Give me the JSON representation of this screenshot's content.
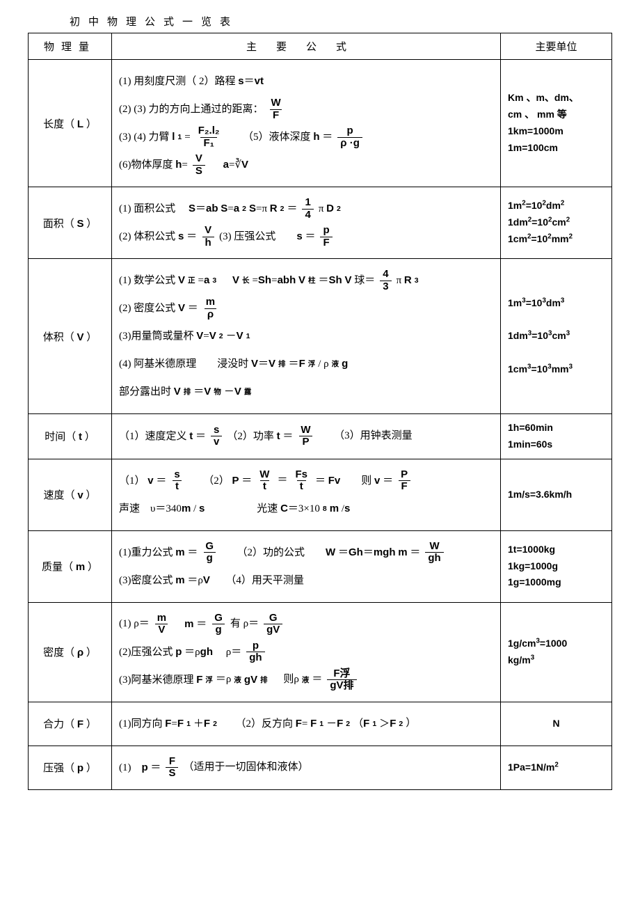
{
  "title": "初中物理公式一览表",
  "headers": {
    "qty": "物理量",
    "formula": "主要公式",
    "unit": "主要单位"
  },
  "rows": [
    {
      "qty_label": "长度",
      "qty_sym": "L",
      "formulas": [
        {
          "parts": [
            "(1) 用刻度尺测（ 2）路程 s＝vt"
          ]
        },
        {
          "parts": [
            "(2) (3) 力的方向上通过的距离：",
            {
              "type": "eq",
              "lhs": "s=",
              "frac": {
                "n": "W",
                "d": "F"
              }
            }
          ]
        },
        {
          "parts": [
            "(3) (4) 力臂 l",
            {
              "sub": "1"
            },
            "= ",
            {
              "frac": {
                "n": "F₂.l₂",
                "d": "F₁"
              }
            },
            "　　（5）液体深度  h ＝",
            {
              "frac": {
                "n": "p",
                "d": "ρ ·g"
              }
            }
          ]
        },
        {
          "parts": [
            "(6)物体厚度  h=",
            {
              "frac": {
                "n": "V",
                "d": "S"
              }
            },
            "　 a=∛V"
          ]
        }
      ],
      "units": [
        "Km 、m、dm、",
        "cm 、 mm 等",
        "1km=1000m",
        "1m=100cm"
      ]
    },
    {
      "qty_label": "面积",
      "qty_sym": "S",
      "formulas": [
        {
          "parts": [
            "(1)  面积公式　 S＝ab S=a",
            {
              "sup": "2"
            },
            " S=π R",
            {
              "sup": "2"
            },
            " ＝ ",
            {
              "frac": {
                "n": "1",
                "d": "4"
              }
            },
            " π D",
            {
              "sup": "2"
            }
          ]
        },
        {
          "parts": [
            "(2)  体积公式 s ＝",
            {
              "frac": {
                "n": "V",
                "d": "h"
              }
            },
            "  (3)  压强公式　　s ＝",
            {
              "frac": {
                "n": "p",
                "d": "F"
              }
            }
          ]
        }
      ],
      "units": [
        "1m²=10²dm²",
        "1dm²=10²cm²",
        "1cm²=10²mm²"
      ]
    },
    {
      "qty_label": "体积",
      "qty_sym": "V",
      "formulas": [
        {
          "parts": [
            "(1)  数学公式  V",
            {
              "sub": "正"
            },
            "=a",
            {
              "sup": "3"
            },
            "　 V",
            {
              "sub": "长"
            },
            "=Sh=abh V",
            {
              "sub": "柱"
            },
            "＝Sh V 球＝",
            {
              "frac": {
                "n": "4",
                "d": "3"
              }
            },
            " π R",
            {
              "sup": "3"
            }
          ]
        },
        {
          "parts": [
            "(2)  密度公式 V ＝",
            {
              "frac": {
                "n": "m",
                "d": "ρ"
              }
            }
          ]
        },
        {
          "parts": [
            "(3)用量筒或量杯  V=V",
            {
              "sub": "2"
            },
            "－V",
            {
              "sub": "1"
            }
          ]
        },
        {
          "parts": [
            "(4)  阿基米德原理　　浸没时 V＝V",
            {
              "sub": "排"
            },
            "＝F",
            {
              "sub": "浮"
            },
            "/ ρ",
            {
              "sub": "液"
            },
            "g"
          ]
        },
        {
          "parts": [
            "部分露出时  V",
            {
              "sub": "排"
            },
            "＝V",
            {
              "sub": "物"
            },
            "－V",
            {
              "sub": "露"
            }
          ],
          "indent": true
        }
      ],
      "units": [
        "1m³=10³dm³",
        "",
        "1dm³=10³cm³",
        "",
        "1cm³=10³mm³"
      ]
    },
    {
      "qty_label": "时间",
      "qty_sym": "t",
      "formulas": [
        {
          "parts": [
            "（1）速度定义 t ＝",
            {
              "frac": {
                "n": "s",
                "d": "v"
              }
            },
            "（2）功率 t ＝",
            {
              "frac": {
                "n": "W",
                "d": "P"
              }
            },
            "　　（3）用钟表测量"
          ]
        }
      ],
      "units": [
        "1h=60min",
        "1min=60s"
      ]
    },
    {
      "qty_label": "速度",
      "qty_sym": "v",
      "formulas": [
        {
          "parts": [
            "（1） v ＝",
            {
              "frac": {
                "n": "s",
                "d": "t"
              }
            },
            "　　（2） P ＝",
            {
              "frac": {
                "n": "W",
                "d": "t"
              }
            },
            " ＝ ",
            {
              "frac": {
                "n": "Fs",
                "d": "t"
              }
            },
            " ＝ Fv　　则 v ＝",
            {
              "frac": {
                "n": "P",
                "d": "F"
              }
            }
          ]
        },
        {
          "parts": [
            "声速　υ＝340m  / s　　　　　光速 C＝3×10",
            {
              "sup": "8"
            },
            " m /s"
          ]
        }
      ],
      "units": [
        "1m/s=3.6km/h"
      ]
    },
    {
      "qty_label": "质量",
      "qty_sym": "m",
      "formulas": [
        {
          "parts": [
            "(1)重力公式 m ＝",
            {
              "frac": {
                "n": "G",
                "d": "g"
              }
            },
            "　　（2）功的公式　　W ＝Gh＝mgh m ＝",
            {
              "frac": {
                "n": "W",
                "d": "gh"
              }
            }
          ]
        },
        {
          "parts": [
            "(3)密度公式 m ＝ρV　　（4）用天平测量"
          ]
        }
      ],
      "units": [
        "1t=1000kg",
        "1kg=1000g",
        "1g=1000mg"
      ]
    },
    {
      "qty_label": "密度",
      "qty_sym": "ρ",
      "formulas": [
        {
          "parts": [
            "(1) ρ＝",
            {
              "frac": {
                "n": "m",
                "d": "V"
              }
            },
            "　m ＝",
            {
              "frac": {
                "n": "G",
                "d": "g"
              }
            },
            "有  ρ＝",
            {
              "frac": {
                "n": "G",
                "d": "gV"
              }
            }
          ]
        },
        {
          "parts": [
            "(2)压强公式  p ＝ρgh　 ρ＝",
            {
              "frac": {
                "n": "p",
                "d": "gh"
              }
            }
          ]
        },
        {
          "parts": [
            "(3)阿基米德原理  F",
            {
              "sub": "浮"
            },
            "＝ρ",
            {
              "sub": "液"
            },
            "gV",
            {
              "sub": "排"
            },
            "　 则ρ",
            {
              "sub": "液"
            },
            "＝",
            {
              "frac": {
                "n": "F浮",
                "d": "gV排"
              }
            }
          ]
        }
      ],
      "units": [
        "1g/cm³=1000",
        "kg/m³"
      ]
    },
    {
      "qty_label": "合力",
      "qty_sym": "F",
      "formulas": [
        {
          "parts": [
            "(1)同方向 F=F",
            {
              "sub": "1"
            },
            "＋F",
            {
              "sub": "2"
            },
            "　　（2）反方向 F= F",
            {
              "sub": "1"
            },
            "－F",
            {
              "sub": "2"
            },
            "（F",
            {
              "sub": "1"
            },
            "＞F",
            {
              "sub": "2"
            },
            "）"
          ]
        }
      ],
      "units": [
        "N"
      ],
      "unit_center": true
    },
    {
      "qty_label": "压强",
      "qty_sym": "p",
      "formulas": [
        {
          "parts": [
            "(1)　p ＝",
            {
              "frac": {
                "n": "F",
                "d": "S"
              }
            },
            "  （适用于一切固体和液体）"
          ]
        }
      ],
      "units": [
        "1Pa=1N/m²"
      ]
    }
  ]
}
